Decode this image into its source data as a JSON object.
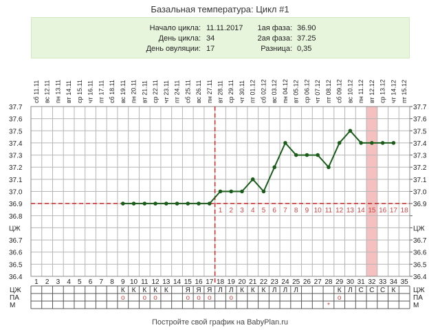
{
  "title": "Базальная температура: Цикл #1",
  "info": {
    "left": [
      {
        "label": "Начало цикла:",
        "value": "11.11.2017"
      },
      {
        "label": "День цикла:",
        "value": "34"
      },
      {
        "label": "День овуляции:",
        "value": "17"
      }
    ],
    "right": [
      {
        "label": "1ая фаза:",
        "value": "36.90"
      },
      {
        "label": "2ая фаза:",
        "value": "37.25"
      },
      {
        "label": "Разница:",
        "value": "0,35"
      }
    ]
  },
  "footer": "Постройте свой график на BabyPlan.ru",
  "colors": {
    "line": "#1a5c1a",
    "ovulation": "#cc2222",
    "highlight": "#f5c0c0",
    "phase_numbers": "#cc4444",
    "info_bg": "#e8f5dd"
  },
  "chart_data": {
    "type": "line",
    "date_labels": [
      "сб 11.11",
      "вс 12.11",
      "пн 13.11",
      "вт 14.11",
      "ср 15.11",
      "чт 16.11",
      "пт 17.11",
      "сб 18.11",
      "вс 19.11",
      "пн 20.11",
      "вт 21.11",
      "ср 22.11",
      "чт 23.11",
      "пт 24.11",
      "сб 25.11",
      "вс 26.11",
      "пн 27.11",
      "вт 28.11",
      "ср 29.11",
      "чт 30.11",
      "пт 01.12",
      "сб 02.12",
      "вс 03.12",
      "пн 04.12",
      "вт 05.12",
      "ср 06.12",
      "чт 07.12",
      "пт 08.12",
      "сб 09.12",
      "вс 10.12",
      "пн 11.12",
      "вт 12.12",
      "ср 13.12",
      "чт 14.12",
      "пт 15.12"
    ],
    "days": [
      1,
      2,
      3,
      4,
      5,
      6,
      7,
      8,
      9,
      10,
      11,
      12,
      13,
      14,
      15,
      16,
      17,
      18,
      19,
      20,
      21,
      22,
      23,
      24,
      25,
      26,
      27,
      28,
      29,
      30,
      31,
      32,
      33,
      34,
      35
    ],
    "y_ticks": [
      "37.7",
      "37.6",
      "37.5",
      "37.4",
      "37.3",
      "37.2",
      "37.1",
      "37.0",
      "36.9",
      "36.8",
      "ЦЖ",
      "36.7",
      "36.6",
      "36.5",
      "36.4"
    ],
    "y_labels_right": [
      "37.7",
      "37.6",
      "37.5",
      "37.4",
      "37.3",
      "37.2",
      "37.1",
      "37.0",
      "36.9",
      "ЦЖ",
      "36.7",
      "36.6",
      "36.5",
      "36.4"
    ],
    "ylim": [
      36.4,
      37.7
    ],
    "series": [
      {
        "x": [
          9,
          10,
          11,
          12,
          13,
          14,
          15,
          16,
          17,
          18,
          19,
          20,
          21,
          22,
          23,
          24,
          25,
          26,
          27,
          28,
          29,
          30,
          31,
          32,
          33,
          34
        ],
        "y": [
          36.9,
          36.9,
          36.9,
          36.9,
          36.9,
          36.9,
          36.9,
          36.9,
          36.9,
          37.0,
          37.0,
          37.0,
          37.1,
          37.0,
          37.2,
          37.4,
          37.3,
          37.3,
          37.3,
          37.2,
          37.4,
          37.5,
          37.4,
          37.4,
          37.4,
          37.4
        ]
      }
    ],
    "coverline": 36.9,
    "ovulation_day": 17,
    "highlight_day": 32,
    "phase2_numbers": [
      "1",
      "2",
      "3",
      "4",
      "5",
      "6",
      "7",
      "8",
      "9",
      "10",
      "11",
      "12",
      "13",
      "14",
      "15",
      "16",
      "17",
      "18"
    ],
    "rows": [
      {
        "label": "ЦЖ",
        "cells": {
          "9": "К",
          "10": "К",
          "11": "К",
          "12": "К",
          "13": "К",
          "15": "Я",
          "16": "Я",
          "17": "Я",
          "18": "Л",
          "19": "Л",
          "20": "К",
          "21": "К",
          "22": "К",
          "23": "Л",
          "24": "Л",
          "25": "Л",
          "29": "К",
          "30": "Л",
          "31": "С",
          "32": "С",
          "33": "С",
          "34": "К"
        }
      },
      {
        "label": "ПА",
        "cells": {
          "9": "o",
          "11": "o",
          "12": "o",
          "15": "o",
          "16": "o",
          "17": "o",
          "19": "o",
          "29": "o"
        }
      },
      {
        "label": "М",
        "cells": {
          "28": "*"
        }
      }
    ]
  }
}
